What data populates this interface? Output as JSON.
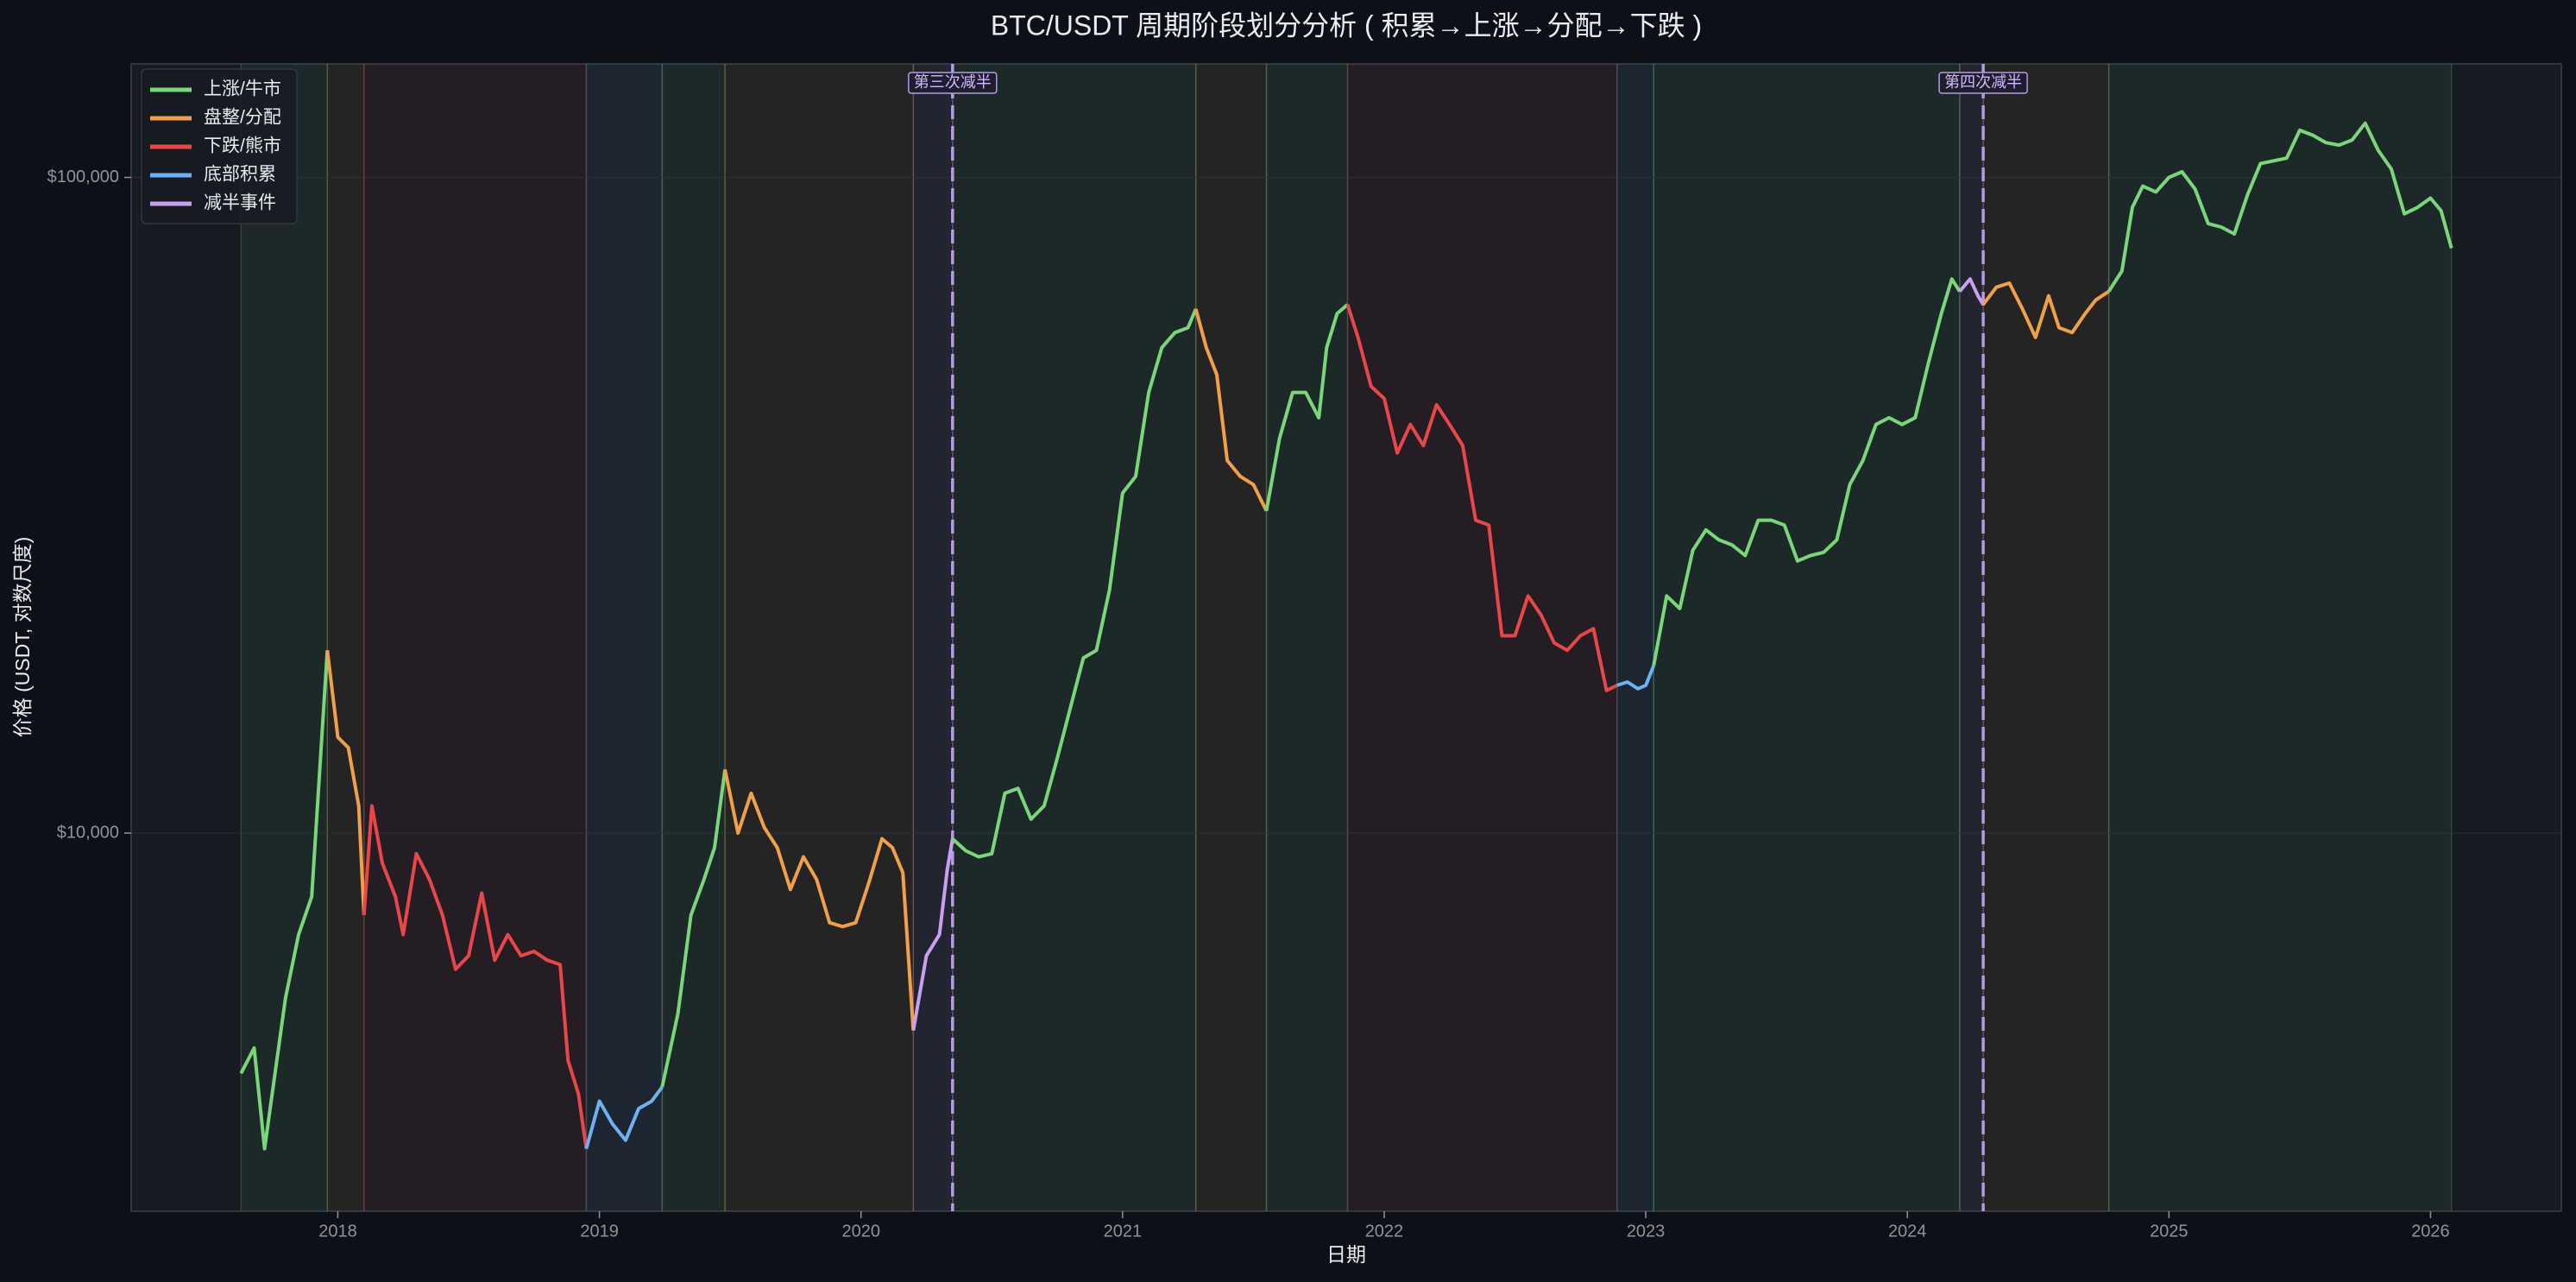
{
  "chart_data": {
    "type": "line",
    "title": "BTC/USDT 周期阶段划分分析 ( 积累→上涨→分配→下跌 )",
    "x_label": "日期",
    "y_label": "价格 (USDT, 对数尺度)",
    "log_y": true,
    "grid": true,
    "legend": "upper left",
    "xlim": [
      2017.21,
      2026.5
    ],
    "xticks": [
      2018,
      2019,
      2020,
      2021,
      2022,
      2023,
      2024,
      2025,
      2026
    ],
    "ylim": [
      2650,
      149000
    ],
    "yticks": [
      {
        "value": 10000,
        "label": "$10,000"
      },
      {
        "value": 100000,
        "label": "$100,000"
      }
    ],
    "series": [
      {
        "name": "上涨/牛市",
        "color": "#7bd67b"
      },
      {
        "name": "盘整/分配",
        "color": "#f0a04b"
      },
      {
        "name": "下跌/熊市",
        "color": "#e8474a"
      },
      {
        "name": "底部积累",
        "color": "#6eb1f0"
      },
      {
        "name": "减半事件",
        "color": "#c9a0f0"
      }
    ],
    "phases": [
      {
        "start": 2017.63,
        "end": 2017.96,
        "color": "#7bd67b"
      },
      {
        "start": 2017.96,
        "end": 2018.1,
        "color": "#f0a04b"
      },
      {
        "start": 2018.1,
        "end": 2018.95,
        "color": "#e8474a"
      },
      {
        "start": 2018.95,
        "end": 2019.24,
        "color": "#6eb1f0"
      },
      {
        "start": 2019.24,
        "end": 2019.48,
        "color": "#7bd67b"
      },
      {
        "start": 2019.48,
        "end": 2020.2,
        "color": "#f0a04b"
      },
      {
        "start": 2020.2,
        "end": 2020.35,
        "color": "#c9a0f0"
      },
      {
        "start": 2020.35,
        "end": 2021.28,
        "color": "#7bd67b"
      },
      {
        "start": 2021.28,
        "end": 2021.55,
        "color": "#f0a04b"
      },
      {
        "start": 2021.55,
        "end": 2021.86,
        "color": "#7bd67b"
      },
      {
        "start": 2021.86,
        "end": 2022.89,
        "color": "#e8474a"
      },
      {
        "start": 2022.89,
        "end": 2023.03,
        "color": "#6eb1f0"
      },
      {
        "start": 2023.03,
        "end": 2024.2,
        "color": "#7bd67b"
      },
      {
        "start": 2024.2,
        "end": 2024.29,
        "color": "#c9a0f0"
      },
      {
        "start": 2024.29,
        "end": 2024.77,
        "color": "#f0a04b"
      },
      {
        "start": 2024.77,
        "end": 2026.08,
        "color": "#7bd67b"
      }
    ],
    "annotations": [
      {
        "x": 2020.35,
        "text": "第三次减半",
        "color": "#b79be0"
      },
      {
        "x": 2024.29,
        "text": "第四次减半",
        "color": "#b79be0"
      }
    ],
    "x": [
      2017.63,
      2017.68,
      2017.72,
      2017.76,
      2017.8,
      2017.85,
      2017.9,
      2017.96,
      2018.0,
      2018.04,
      2018.08,
      2018.1,
      2018.13,
      2018.17,
      2018.22,
      2018.25,
      2018.3,
      2018.35,
      2018.4,
      2018.45,
      2018.5,
      2018.55,
      2018.6,
      2018.65,
      2018.7,
      2018.75,
      2018.8,
      2018.85,
      2018.88,
      2018.92,
      2018.95,
      2019.0,
      2019.05,
      2019.1,
      2019.15,
      2019.2,
      2019.24,
      2019.3,
      2019.35,
      2019.4,
      2019.44,
      2019.48,
      2019.53,
      2019.58,
      2019.63,
      2019.68,
      2019.73,
      2019.78,
      2019.83,
      2019.88,
      2019.93,
      2019.98,
      2020.03,
      2020.08,
      2020.12,
      2020.16,
      2020.2,
      2020.25,
      2020.3,
      2020.33,
      2020.35,
      2020.4,
      2020.45,
      2020.5,
      2020.55,
      2020.6,
      2020.65,
      2020.7,
      2020.75,
      2020.8,
      2020.85,
      2020.9,
      2020.95,
      2021.0,
      2021.05,
      2021.1,
      2021.15,
      2021.2,
      2021.25,
      2021.28,
      2021.32,
      2021.36,
      2021.4,
      2021.45,
      2021.5,
      2021.55,
      2021.6,
      2021.65,
      2021.7,
      2021.75,
      2021.78,
      2021.82,
      2021.86,
      2021.9,
      2021.95,
      2022.0,
      2022.05,
      2022.1,
      2022.15,
      2022.2,
      2022.25,
      2022.3,
      2022.35,
      2022.4,
      2022.45,
      2022.5,
      2022.55,
      2022.6,
      2022.65,
      2022.7,
      2022.75,
      2022.8,
      2022.85,
      2022.89,
      2022.93,
      2022.97,
      2023.0,
      2023.03,
      2023.08,
      2023.13,
      2023.18,
      2023.23,
      2023.28,
      2023.33,
      2023.38,
      2023.43,
      2023.48,
      2023.53,
      2023.58,
      2023.63,
      2023.68,
      2023.73,
      2023.78,
      2023.83,
      2023.88,
      2023.93,
      2023.98,
      2024.03,
      2024.08,
      2024.13,
      2024.17,
      2024.2,
      2024.24,
      2024.27,
      2024.29,
      2024.34,
      2024.39,
      2024.44,
      2024.49,
      2024.54,
      2024.58,
      2024.63,
      2024.68,
      2024.72,
      2024.77,
      2024.82,
      2024.86,
      2024.9,
      2024.95,
      2025.0,
      2025.05,
      2025.1,
      2025.15,
      2025.2,
      2025.25,
      2025.3,
      2025.35,
      2025.4,
      2025.45,
      2025.5,
      2025.55,
      2025.6,
      2025.65,
      2025.7,
      2025.75,
      2025.8,
      2025.85,
      2025.9,
      2025.95,
      2026.0,
      2026.04,
      2026.08
    ],
    "values": [
      4300,
      4700,
      3300,
      4300,
      5600,
      7000,
      8000,
      19000,
      14000,
      13500,
      11000,
      7500,
      11000,
      9000,
      8000,
      7000,
      9300,
      8500,
      7500,
      6200,
      6500,
      8100,
      6400,
      7000,
      6500,
      6600,
      6400,
      6300,
      4500,
      4000,
      3300,
      3900,
      3600,
      3400,
      3800,
      3900,
      4100,
      5300,
      7500,
      8500,
      9500,
      12500,
      10000,
      11500,
      10200,
      9500,
      8200,
      9200,
      8500,
      7300,
      7200,
      7300,
      8400,
      9800,
      9500,
      8700,
      5000,
      6500,
      7000,
      8800,
      9800,
      9400,
      9200,
      9300,
      11500,
      11700,
      10500,
      11000,
      13000,
      15500,
      18500,
      19000,
      23500,
      33000,
      35000,
      47000,
      55000,
      58000,
      59000,
      63000,
      55000,
      50000,
      37000,
      35000,
      34000,
      31000,
      40000,
      47000,
      47000,
      43000,
      55000,
      62000,
      64000,
      57000,
      48000,
      46000,
      38000,
      42000,
      39000,
      45000,
      42000,
      39000,
      30000,
      29500,
      20000,
      20000,
      23000,
      21500,
      19500,
      19000,
      20000,
      20500,
      16500,
      16800,
      17000,
      16600,
      16800,
      18000,
      23000,
      22000,
      27000,
      29000,
      28000,
      27500,
      26500,
      30000,
      30000,
      29500,
      26000,
      26500,
      26800,
      28000,
      34000,
      37000,
      42000,
      43000,
      42000,
      43000,
      52000,
      62000,
      70000,
      67000,
      70000,
      66000,
      64000,
      68000,
      69000,
      63000,
      57000,
      66000,
      59000,
      58000,
      62000,
      65000,
      67000,
      72000,
      90000,
      97000,
      95000,
      100000,
      102000,
      96000,
      85000,
      84000,
      82000,
      94000,
      105000,
      106000,
      107000,
      118000,
      116000,
      113000,
      112000,
      114000,
      121000,
      110000,
      103000,
      88000,
      90000,
      93000,
      89000,
      78000
    ]
  }
}
